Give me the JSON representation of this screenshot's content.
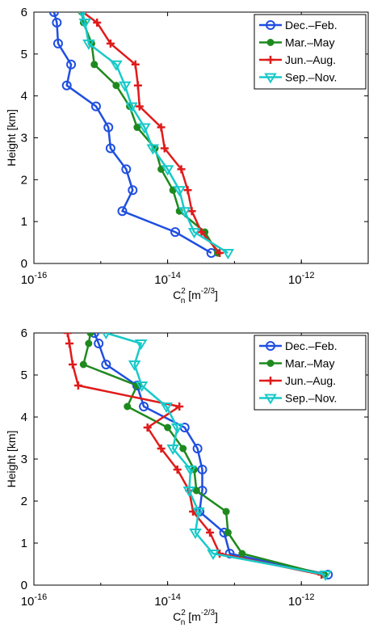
{
  "chart_data": [
    {
      "type": "line",
      "xscale": "log",
      "xlim": [
        1e-16,
        1e-11
      ],
      "ylim": [
        0,
        6
      ],
      "xticks": [
        1e-16,
        1e-14,
        1e-12
      ],
      "xtick_labels": [
        {
          "base": "10",
          "exp": "-16"
        },
        {
          "base": "10",
          "exp": "-14"
        },
        {
          "base": "10",
          "exp": "-12"
        }
      ],
      "yticks": [
        0,
        1,
        2,
        3,
        4,
        5,
        6
      ],
      "ytick_labels": [
        "0",
        "1",
        "2",
        "3",
        "4",
        "5",
        "6"
      ],
      "xlabel": {
        "main": "C",
        "sub": "n",
        "sup": "2",
        "unit_open": " [m",
        "unit_exp": "-2/3",
        "unit_close": "]"
      },
      "ylabel": "Height [km]",
      "grid": false,
      "legend": "top-right",
      "series": [
        {
          "name": "Dec.–Feb.",
          "color": "#1f4fe0",
          "marker": "circle",
          "x": [
            4.5e-14,
            1.3e-14,
            2.1e-15,
            3e-15,
            2.4e-15,
            1.4e-15,
            1.3e-15,
            8.5e-16,
            3.1e-16,
            3.6e-16,
            2.3e-16,
            2.2e-16,
            2e-16
          ],
          "y": [
            0.25,
            0.75,
            1.25,
            1.75,
            2.25,
            2.75,
            3.25,
            3.75,
            4.25,
            4.75,
            5.25,
            5.75,
            6.0
          ]
        },
        {
          "name": "Mar.–May",
          "color": "#1e8a1e",
          "marker": "dot",
          "x": [
            5.6e-14,
            3.6e-14,
            1.5e-14,
            1.2e-14,
            8e-15,
            6.5e-15,
            3.5e-15,
            2.7e-15,
            1.7e-15,
            8e-16,
            7.3e-16,
            5.5e-16,
            5.2e-16
          ],
          "y": [
            0.25,
            0.75,
            1.25,
            1.75,
            2.25,
            2.75,
            3.25,
            3.75,
            4.25,
            4.75,
            5.25,
            5.75,
            6.0
          ]
        },
        {
          "name": "Jun.–Aug.",
          "color": "#e01b1b",
          "marker": "plus",
          "x": [
            6e-14,
            3.2e-14,
            2.3e-14,
            2e-14,
            1.6e-14,
            9e-15,
            8e-15,
            3.8e-15,
            3.6e-15,
            3.3e-15,
            1.4e-15,
            8.8e-16,
            5.4e-16
          ],
          "y": [
            0.25,
            0.75,
            1.25,
            1.75,
            2.25,
            2.75,
            3.25,
            3.75,
            4.25,
            4.75,
            5.25,
            5.75,
            6.0
          ]
        },
        {
          "name": "Sep.–Nov.",
          "color": "#19c9c9",
          "marker": "triangle-down",
          "x": [
            8e-14,
            2.5e-14,
            1.8e-14,
            1.5e-14,
            1e-14,
            6e-15,
            4.5e-15,
            2.9e-15,
            2.3e-15,
            1.7e-15,
            6.6e-16,
            5.8e-16,
            5.3e-16
          ],
          "y": [
            0.25,
            0.75,
            1.25,
            1.75,
            2.25,
            2.75,
            3.25,
            3.75,
            4.25,
            4.75,
            5.25,
            5.75,
            6.0
          ]
        }
      ]
    },
    {
      "type": "line",
      "xscale": "log",
      "xlim": [
        1e-16,
        1e-11
      ],
      "ylim": [
        0,
        6
      ],
      "xticks": [
        1e-16,
        1e-14,
        1e-12
      ],
      "xtick_labels": [
        {
          "base": "10",
          "exp": "-16"
        },
        {
          "base": "10",
          "exp": "-14"
        },
        {
          "base": "10",
          "exp": "-12"
        }
      ],
      "yticks": [
        0,
        1,
        2,
        3,
        4,
        5,
        6
      ],
      "ytick_labels": [
        "0",
        "1",
        "2",
        "3",
        "4",
        "5",
        "6"
      ],
      "xlabel": {
        "main": "C",
        "sub": "n",
        "sup": "2",
        "unit_open": " [m",
        "unit_exp": "-2/3",
        "unit_close": "]"
      },
      "ylabel": "Height [km]",
      "grid": false,
      "legend": "top-right",
      "series": [
        {
          "name": "Dec.–Feb.",
          "color": "#1f4fe0",
          "marker": "circle",
          "x": [
            2.5e-12,
            8.5e-14,
            7e-14,
            3e-14,
            3.3e-14,
            3.3e-14,
            2.8e-14,
            1.8e-14,
            4.4e-15,
            3.5e-15,
            1.2e-15,
            9.3e-16,
            8e-16
          ],
          "y": [
            0.25,
            0.75,
            1.25,
            1.75,
            2.25,
            2.75,
            3.25,
            3.75,
            4.25,
            4.75,
            5.25,
            5.75,
            6.0
          ]
        },
        {
          "name": "Mar.–May",
          "color": "#1e8a1e",
          "marker": "dot",
          "x": [
            2.2e-12,
            1.3e-13,
            8e-14,
            7.5e-14,
            2.7e-14,
            2.5e-14,
            1.7e-14,
            1e-14,
            2.5e-15,
            3.5e-15,
            5.5e-16,
            6.6e-16,
            7e-16
          ],
          "y": [
            0.25,
            0.75,
            1.25,
            1.75,
            2.25,
            2.75,
            3.25,
            3.75,
            4.25,
            4.75,
            5.25,
            5.75,
            6.0
          ]
        },
        {
          "name": "Jun.–Aug.",
          "color": "#e01b1b",
          "marker": "plus",
          "x": [
            2e-12,
            6e-14,
            4.3e-14,
            2.4e-14,
            2.1e-14,
            1.4e-14,
            8e-15,
            5e-15,
            1.5e-14,
            4.6e-16,
            3.8e-16,
            3.4e-16,
            3.2e-16
          ],
          "y": [
            0.25,
            0.75,
            1.25,
            1.75,
            2.25,
            2.75,
            3.25,
            3.75,
            4.25,
            4.75,
            5.25,
            5.75,
            6.0
          ]
        },
        {
          "name": "Sep.–Nov.",
          "color": "#19c9c9",
          "marker": "triangle-down",
          "x": [
            2.3e-12,
            4.8e-14,
            2.6e-14,
            2.9e-14,
            2.1e-14,
            2.2e-14,
            1.2e-14,
            1.4e-14,
            9.6e-15,
            4.1e-15,
            3.2e-15,
            4e-15,
            1.2e-15
          ],
          "y": [
            0.25,
            0.75,
            1.25,
            1.75,
            2.25,
            2.75,
            3.25,
            3.75,
            4.25,
            4.75,
            5.25,
            5.75,
            6.0
          ]
        }
      ]
    }
  ]
}
